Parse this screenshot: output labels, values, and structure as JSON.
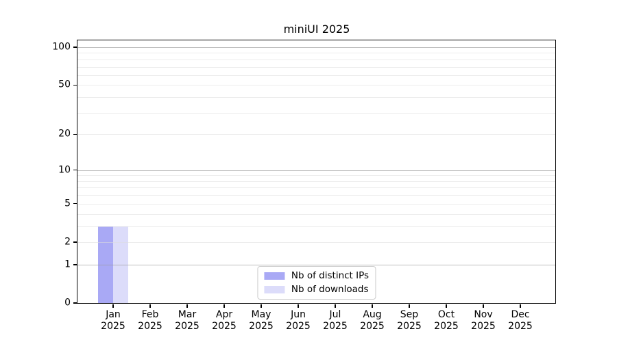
{
  "chart_data": {
    "type": "bar",
    "title": "miniUI 2025",
    "categories": [
      "Jan 2025",
      "Feb 2025",
      "Mar 2025",
      "Apr 2025",
      "May 2025",
      "Jun 2025",
      "Jul 2025",
      "Aug 2025",
      "Sep 2025",
      "Oct 2025",
      "Nov 2025",
      "Dec 2025"
    ],
    "series": [
      {
        "name": "Nb of distinct IPs",
        "color": "#a9a9f5",
        "values": [
          3,
          0,
          0,
          0,
          0,
          0,
          0,
          0,
          0,
          0,
          0,
          0
        ]
      },
      {
        "name": "Nb of downloads",
        "color": "#dcdcfa",
        "values": [
          3,
          0,
          0,
          0,
          0,
          0,
          0,
          0,
          0,
          0,
          0,
          0
        ]
      }
    ],
    "xlabel": "",
    "ylabel": "",
    "yscale": "log10(v+1)",
    "ylim": [
      0,
      114
    ],
    "y_ticks": [
      {
        "v": 100,
        "label": "100"
      },
      {
        "v": 50,
        "label": "50"
      },
      {
        "v": 20,
        "label": "20"
      },
      {
        "v": 10,
        "label": "10"
      },
      {
        "v": 5,
        "label": "5"
      },
      {
        "v": 2,
        "label": "2"
      },
      {
        "v": 1,
        "label": "1"
      },
      {
        "v": 0,
        "label": "0"
      }
    ],
    "y_major_grid_values": [
      1,
      10,
      100
    ],
    "y_minor_grid_values": [
      2,
      3,
      4,
      5,
      6,
      7,
      8,
      9,
      20,
      30,
      40,
      50,
      60,
      70,
      80,
      90
    ],
    "grid": true,
    "legend_position": "lower center"
  },
  "colors": {
    "background": "#ffffff",
    "spine": "#000000",
    "grid_major": "#9a9a9a",
    "grid_minor": "#dcdcdc",
    "tick_text": "#000000",
    "legend_border": "#cccccc"
  }
}
